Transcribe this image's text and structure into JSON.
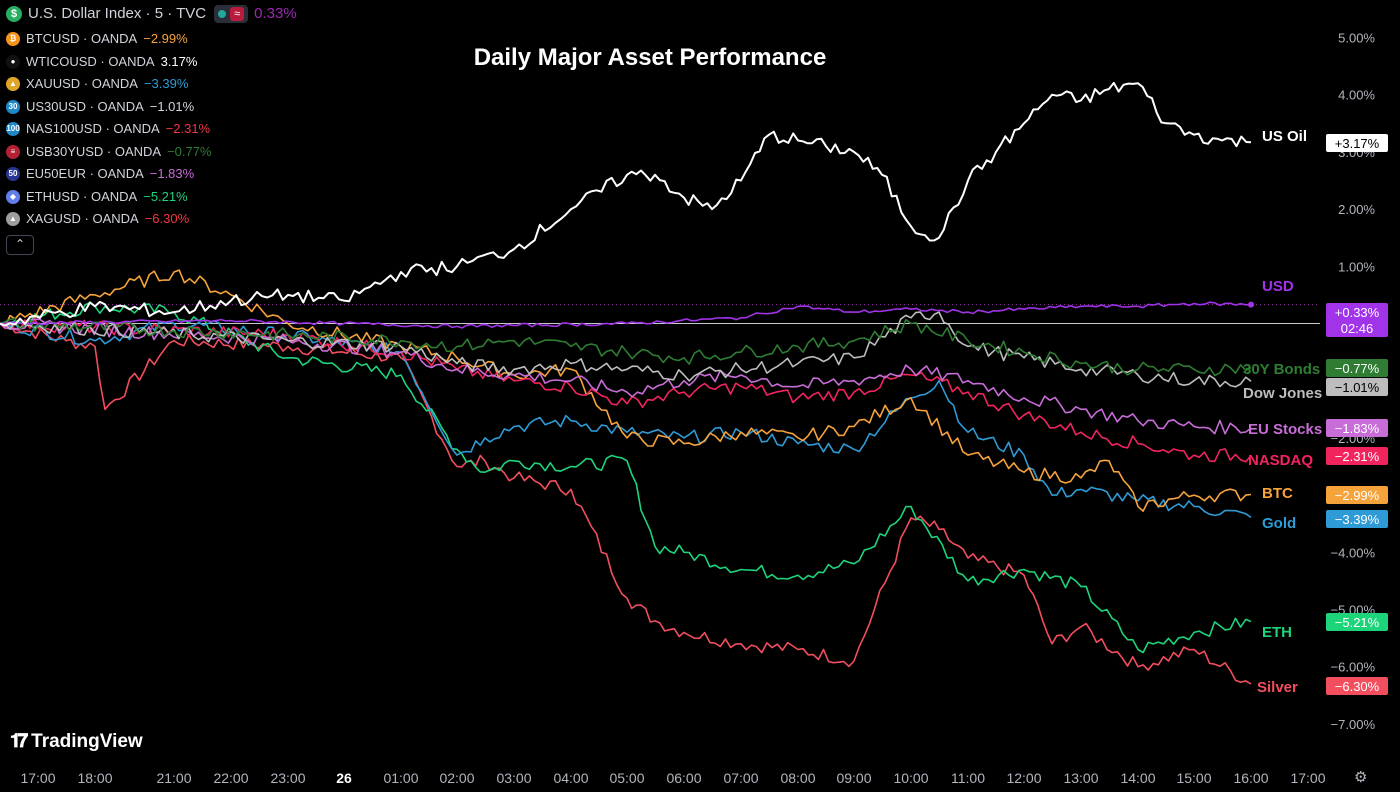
{
  "legend": {
    "main": {
      "symbol": "U.S. Dollar Index · 5 · TVC",
      "value": "0.33%",
      "icon": "dollar-icon",
      "color": "#9c27b0",
      "icon_color": "#27ae60",
      "status_badge": "≈"
    },
    "items": [
      {
        "symbol": "BTCUSD · OANDA",
        "value": "−2.99%",
        "color": "#f7a33c",
        "icon": "bitcoin-icon",
        "icon_text": "₿",
        "icon_color": "#f7931a"
      },
      {
        "symbol": "WTICOUSD · OANDA",
        "value": "3.17%",
        "color": "#ffffff",
        "icon": "oil-drop-icon",
        "icon_text": "●",
        "icon_color": "#111111"
      },
      {
        "symbol": "XAUUSD · OANDA",
        "value": "−3.39%",
        "color": "#2e9bd6",
        "icon": "gold-icon",
        "icon_text": "▲",
        "icon_color": "#e0a526"
      },
      {
        "symbol": "US30USD · OANDA",
        "value": "−1.01%",
        "color": "#d1d4dc",
        "icon": "us30-icon",
        "icon_text": "30",
        "icon_color": "#1e88c8"
      },
      {
        "symbol": "NAS100USD · OANDA",
        "value": "−2.31%",
        "color": "#f23645",
        "icon": "nas100-icon",
        "icon_text": "100",
        "icon_color": "#1e88c8"
      },
      {
        "symbol": "USB30YUSD · OANDA",
        "value": "−0.77%",
        "color": "#2e7d32",
        "icon": "us-flag-icon",
        "icon_text": "≡",
        "icon_color": "#b22234"
      },
      {
        "symbol": "EU50EUR · OANDA",
        "value": "−1.83%",
        "color": "#c86dd7",
        "icon": "eu50-icon",
        "icon_text": "50",
        "icon_color": "#283593"
      },
      {
        "symbol": "ETHUSD · OANDA",
        "value": "−5.21%",
        "color": "#1ed47a",
        "icon": "ethereum-icon",
        "icon_text": "◆",
        "icon_color": "#627eea"
      },
      {
        "symbol": "XAGUSD · OANDA",
        "value": "−6.30%",
        "color": "#f23645",
        "icon": "silver-icon",
        "icon_text": "▲",
        "icon_color": "#9e9e9e"
      }
    ],
    "collapse_icon": "chevron-up-icon"
  },
  "branding": {
    "name": "TradingView",
    "icon": "tradingview-logo-icon"
  },
  "settings_icon": "gear-icon",
  "chart_data": {
    "type": "line",
    "title": "Daily Major Asset Performance",
    "x_labels": [
      "17:00",
      "18:00",
      "21:00",
      "22:00",
      "23:00",
      "26",
      "01:00",
      "02:00",
      "03:00",
      "04:00",
      "05:00",
      "06:00",
      "07:00",
      "08:00",
      "09:00",
      "10:00",
      "11:00",
      "12:00",
      "13:00",
      "14:00",
      "15:00",
      "16:00",
      "17:00"
    ],
    "y_unit": "%",
    "y_ticks": [
      5,
      4,
      3,
      2,
      1,
      0,
      -1,
      -2,
      -3,
      -4,
      -5,
      -6,
      -7
    ],
    "y_tick_labels": [
      "5.00%",
      "4.00%",
      "3.00%",
      "2.00%",
      "1.00%",
      "",
      "",
      "−2.00%",
      "",
      "−4.00%",
      "−5.00%",
      "−6.00%",
      "−7.00%"
    ],
    "ylim": [
      -7.3,
      5.2
    ],
    "grid": false,
    "baseline": 0,
    "cursor": {
      "value": "+0.33%",
      "countdown": "02:46",
      "y": 0.33
    },
    "series": [
      {
        "name": "US Oil",
        "color": "#ffffff",
        "last": "+3.17%",
        "last_value": 3.17,
        "x": [
          "17:00",
          "18:00",
          "21:00",
          "22:00",
          "23:00",
          "26",
          "01:00",
          "02:00",
          "03:00",
          "04:00",
          "05:00",
          "05:30",
          "06:00",
          "06:30",
          "07:00",
          "07:30",
          "08:00",
          "08:30",
          "09:00",
          "09:30",
          "10:00",
          "10:30",
          "11:00",
          "11:30",
          "12:00",
          "12:30",
          "13:00",
          "13:30",
          "14:00",
          "14:30",
          "15:00",
          "15:30",
          "16:00"
        ],
        "y": [
          0.0,
          0.3,
          0.2,
          0.4,
          0.5,
          0.4,
          0.9,
          1.0,
          1.3,
          2.0,
          2.6,
          2.6,
          2.2,
          2.0,
          2.5,
          3.3,
          3.2,
          3.1,
          3.0,
          2.6,
          1.7,
          1.5,
          2.5,
          3.0,
          3.5,
          4.0,
          3.9,
          4.1,
          4.2,
          3.5,
          3.3,
          3.2,
          3.17
        ]
      },
      {
        "name": "USD",
        "color": "#a133e8",
        "last": "+0.33%",
        "last_value": 0.33,
        "x": [
          "17:00",
          "22:00",
          "26",
          "02:00",
          "05:00",
          "07:00",
          "08:00",
          "09:00",
          "10:00",
          "11:00",
          "12:00",
          "13:00",
          "14:00",
          "15:00",
          "16:00"
        ],
        "y": [
          0.0,
          0.05,
          0.0,
          -0.05,
          0.0,
          0.1,
          0.3,
          0.2,
          0.25,
          0.2,
          0.25,
          0.3,
          0.3,
          0.35,
          0.33
        ]
      },
      {
        "name": "30Y Bonds",
        "color": "#2e7d32",
        "last": "−0.77%",
        "last_value": -0.77,
        "x": [
          "17:00",
          "23:00",
          "01:00",
          "02:00",
          "03:00",
          "04:00",
          "05:00",
          "06:00",
          "07:00",
          "08:00",
          "09:00",
          "10:00",
          "11:00",
          "12:00",
          "13:00",
          "14:00",
          "15:00",
          "16:00"
        ],
        "y": [
          0.0,
          -0.2,
          -0.3,
          -0.4,
          -0.3,
          -0.4,
          -0.5,
          -0.6,
          -0.5,
          -0.4,
          -0.3,
          0.0,
          -0.3,
          -0.5,
          -0.7,
          -0.8,
          -0.8,
          -0.77
        ]
      },
      {
        "name": "Dow Jones",
        "color": "#bdbdbd",
        "last": "−1.01%",
        "last_value": -1.01,
        "x": [
          "17:00",
          "23:00",
          "01:00",
          "02:00",
          "03:00",
          "04:00",
          "05:00",
          "06:00",
          "07:00",
          "08:00",
          "09:00",
          "10:00",
          "10:30",
          "11:00",
          "12:00",
          "13:00",
          "14:00",
          "15:00",
          "16:00"
        ],
        "y": [
          0.0,
          -0.3,
          -0.4,
          -0.7,
          -0.8,
          -0.7,
          -0.8,
          -0.9,
          -0.8,
          -0.7,
          -0.6,
          0.1,
          0.2,
          -0.4,
          -0.6,
          -0.8,
          -0.9,
          -1.0,
          -1.01
        ]
      },
      {
        "name": "EU Stocks",
        "color": "#c86dd7",
        "last": "−1.83%",
        "last_value": -1.83,
        "x": [
          "17:00",
          "23:00",
          "01:00",
          "02:00",
          "03:00",
          "04:00",
          "05:00",
          "06:00",
          "07:00",
          "08:00",
          "09:00",
          "10:00",
          "11:00",
          "12:00",
          "13:00",
          "14:00",
          "15:00",
          "16:00"
        ],
        "y": [
          0.0,
          -0.3,
          -0.5,
          -0.8,
          -0.9,
          -1.0,
          -1.2,
          -1.0,
          -0.9,
          -1.1,
          -1.0,
          -0.8,
          -1.0,
          -1.3,
          -1.5,
          -1.7,
          -1.8,
          -1.83
        ]
      },
      {
        "name": "NASDAQ",
        "color": "#f2245e",
        "last": "−2.31%",
        "last_value": -2.31,
        "x": [
          "17:00",
          "23:00",
          "01:00",
          "02:00",
          "03:00",
          "04:00",
          "05:00",
          "06:00",
          "07:00",
          "08:00",
          "09:00",
          "10:00",
          "11:00",
          "12:00",
          "13:00",
          "14:00",
          "15:00",
          "16:00"
        ],
        "y": [
          0.0,
          -0.2,
          -0.5,
          -0.8,
          -1.0,
          -1.1,
          -1.4,
          -1.2,
          -1.1,
          -1.3,
          -1.2,
          -0.9,
          -1.2,
          -1.6,
          -1.9,
          -2.1,
          -2.3,
          -2.31
        ]
      },
      {
        "name": "BTC",
        "color": "#f7a33c",
        "last": "−2.99%",
        "last_value": -2.99,
        "x": [
          "17:00",
          "18:00",
          "21:00",
          "22:00",
          "23:00",
          "01:00",
          "02:00",
          "03:00",
          "04:00",
          "05:00",
          "06:00",
          "07:00",
          "08:00",
          "09:00",
          "10:00",
          "11:00",
          "12:00",
          "13:00",
          "13:30",
          "14:00",
          "15:00",
          "16:00"
        ],
        "y": [
          0.0,
          0.5,
          0.9,
          0.5,
          0.0,
          -0.4,
          -0.6,
          -0.9,
          -0.8,
          -2.0,
          -2.1,
          -1.9,
          -2.0,
          -1.8,
          -1.3,
          -2.3,
          -2.6,
          -2.7,
          -2.4,
          -3.2,
          -3.0,
          -2.99
        ]
      },
      {
        "name": "Gold",
        "color": "#2e9bd6",
        "last": "−3.39%",
        "last_value": -3.39,
        "x": [
          "17:00",
          "18:00",
          "21:00",
          "23:00",
          "01:00",
          "02:00",
          "02:30",
          "03:00",
          "04:00",
          "05:00",
          "06:00",
          "07:00",
          "08:00",
          "09:00",
          "10:00",
          "10:30",
          "11:00",
          "12:00",
          "12:30",
          "13:00",
          "14:00",
          "15:00",
          "16:00"
        ],
        "y": [
          0.0,
          -0.3,
          0.0,
          -0.2,
          -0.5,
          -2.3,
          -2.0,
          -1.8,
          -1.7,
          -1.9,
          -2.0,
          -1.9,
          -2.1,
          -2.2,
          -1.3,
          -1.0,
          -1.9,
          -2.3,
          -3.0,
          -2.9,
          -3.1,
          -3.2,
          -3.39
        ]
      },
      {
        "name": "ETH",
        "color": "#1ed47a",
        "last": "−5.21%",
        "last_value": -5.21,
        "x": [
          "17:00",
          "18:00",
          "21:00",
          "23:00",
          "01:00",
          "02:00",
          "02:30",
          "03:00",
          "04:00",
          "05:00",
          "05:30",
          "06:00",
          "07:00",
          "08:00",
          "09:00",
          "10:00",
          "11:00",
          "12:00",
          "13:00",
          "14:00",
          "15:00",
          "16:00"
        ],
        "y": [
          0.0,
          0.3,
          0.2,
          -0.6,
          -0.9,
          -2.2,
          -2.6,
          -2.4,
          -2.5,
          -2.4,
          -3.9,
          -4.0,
          -4.3,
          -4.4,
          -4.2,
          -3.2,
          -4.5,
          -4.3,
          -4.6,
          -5.7,
          -5.4,
          -5.21
        ]
      },
      {
        "name": "Silver",
        "color": "#f24e5e",
        "last": "−6.30%",
        "last_value": -6.3,
        "x": [
          "17:00",
          "17:30",
          "18:00",
          "18:30",
          "21:00",
          "23:00",
          "01:00",
          "02:00",
          "02:30",
          "03:00",
          "04:00",
          "05:00",
          "05:30",
          "06:00",
          "07:00",
          "08:00",
          "09:00",
          "10:00",
          "10:30",
          "11:00",
          "12:00",
          "12:30",
          "13:00",
          "14:00",
          "15:00",
          "16:00"
        ],
        "y": [
          0.0,
          -0.3,
          -0.4,
          -1.5,
          -0.3,
          -0.4,
          -0.6,
          -2.5,
          -2.4,
          -2.7,
          -2.9,
          -4.8,
          -5.2,
          -5.4,
          -5.6,
          -5.7,
          -5.9,
          -3.4,
          -3.6,
          -4.1,
          -4.4,
          -5.6,
          -5.3,
          -6.0,
          -5.7,
          -6.3
        ]
      }
    ]
  }
}
